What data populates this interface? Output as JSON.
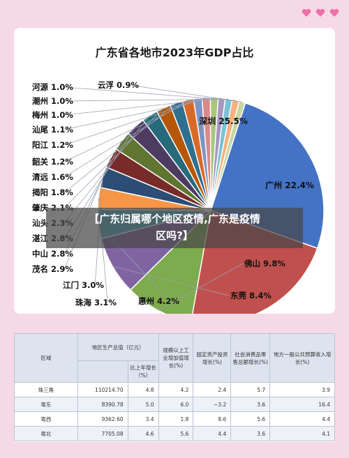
{
  "overlay": {
    "line1": "【广东归属哪个地区疫情,广东是疫情",
    "line2": "区吗?】"
  },
  "colors": {
    "background": "#f6d9e6",
    "heart": "#ef6fa6",
    "overlay": "#464646",
    "table_header": "#dde4f0"
  },
  "chart_data": {
    "type": "pie",
    "title": "广东省各地市2023年GDP占比",
    "slices": [
      {
        "label": "深圳",
        "value": 25.5,
        "text": "25.5%",
        "color": "#4472c4"
      },
      {
        "label": "广州",
        "value": 22.4,
        "text": "22.4%",
        "color": "#c0504d"
      },
      {
        "label": "佛山",
        "value": 9.8,
        "text": "9.8%",
        "color": "#7dab4d"
      },
      {
        "label": "东莞",
        "value": 8.4,
        "text": "8.4%",
        "color": "#8064a2"
      },
      {
        "label": "惠州",
        "value": 4.2,
        "text": "4.2%",
        "color": "#4bacc6"
      },
      {
        "label": "珠海",
        "value": 3.1,
        "text": "3.1%",
        "color": "#f79646"
      },
      {
        "label": "江门",
        "value": 3.0,
        "text": "3.0%",
        "color": "#2c4d75"
      },
      {
        "label": "茂名",
        "value": 2.9,
        "text": "2.9%",
        "color": "#772c2a"
      },
      {
        "label": "中山",
        "value": 2.8,
        "text": "2.8%",
        "color": "#5f7530"
      },
      {
        "label": "湛江",
        "value": 2.8,
        "text": "2.8%",
        "color": "#4d3b62"
      },
      {
        "label": "汕头",
        "value": 2.3,
        "text": "2.3%",
        "color": "#276a7c"
      },
      {
        "label": "肇庆",
        "value": 2.1,
        "text": "2.1%",
        "color": "#b65708"
      },
      {
        "label": "揭阳",
        "value": 1.8,
        "text": "1.8%",
        "color": "#2f6f8f"
      },
      {
        "label": "清远",
        "value": 1.6,
        "text": "1.6%",
        "color": "#d86a28"
      },
      {
        "label": "韶关",
        "value": 1.2,
        "text": "1.2%",
        "color": "#7f92c4"
      },
      {
        "label": "阳江",
        "value": 1.2,
        "text": "1.2%",
        "color": "#d88a88"
      },
      {
        "label": "汕尾",
        "value": 1.1,
        "text": "1.1%",
        "color": "#a8c47f"
      },
      {
        "label": "梅州",
        "value": 1.0,
        "text": "1.0%",
        "color": "#a796c0"
      },
      {
        "label": "潮州",
        "value": 1.0,
        "text": "1.0%",
        "color": "#79c3d6"
      },
      {
        "label": "河源",
        "value": 1.0,
        "text": "1.0%",
        "color": "#f7b07e"
      },
      {
        "label": "云浮",
        "value": 0.9,
        "text": "0.9%",
        "color": "#c9d6a4"
      }
    ]
  },
  "table": {
    "header_row1": [
      "区域",
      "地区生产总值（亿元）",
      "规模以上工业增加值增长(%)",
      "固定资产投资增长(%)",
      "社会消费品零售总额增长(%)",
      "地方一般公共预算收入增长(%)"
    ],
    "header_sub": "比上年增长（%）",
    "rows": [
      [
        "珠三角",
        "110214.70",
        "4.8",
        "4.2",
        "2.4",
        "5.7",
        "3.9"
      ],
      [
        "粤东",
        "8390.78",
        "5.0",
        "6.0",
        "−3.2",
        "3.6",
        "16.4"
      ],
      [
        "粤西",
        "9362.60",
        "3.4",
        "1.8",
        "8.6",
        "5.6",
        "4.4"
      ],
      [
        "粤北",
        "7705.08",
        "4.6",
        "5.6",
        "4.4",
        "3.6",
        "4.1"
      ]
    ]
  }
}
